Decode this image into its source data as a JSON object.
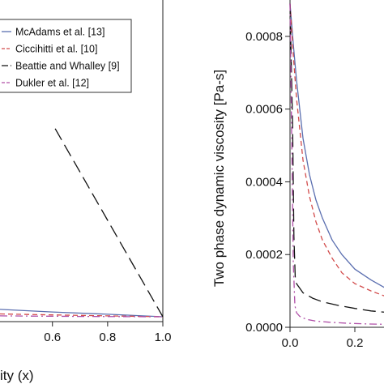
{
  "chart_data": [
    {
      "type": "line",
      "panel": "left",
      "xlabel": "ity (x)",
      "ylabel": "",
      "xlim": [
        0.41,
        1.0
      ],
      "ylim": [
        0,
        1
      ],
      "xticks": [
        0.6,
        0.8,
        1.0
      ],
      "xtick_labels": [
        "0.6",
        "0.8",
        "1.0"
      ],
      "grid": false,
      "legend": {
        "placement": "top-left",
        "entries": [
          {
            "label": "McAdams et al. [13]",
            "color": "#5b6fb0",
            "style": "solid"
          },
          {
            "label": "Ciccihitti et al. [10]",
            "color": "#d24b4b",
            "style": "dashed"
          },
          {
            "label": "Beattie and Whalley [9]",
            "color": "#111111",
            "style": "long-dash"
          },
          {
            "label": "Dukler et al. [12]",
            "color": "#b04fa8",
            "style": "dash-dot"
          }
        ]
      },
      "series": [
        {
          "name": "McAdams et al. [13]",
          "color": "#5b6fb0",
          "style": "solid",
          "x": [
            0.41,
            0.6,
            0.8,
            1.0
          ],
          "y": [
            0.038,
            0.03,
            0.023,
            0.015
          ]
        },
        {
          "name": "Ciccihitti et al. [10]",
          "color": "#d24b4b",
          "style": "dashed",
          "x": [
            0.41,
            0.6,
            0.8,
            1.0
          ],
          "y": [
            0.024,
            0.021,
            0.018,
            0.015
          ]
        },
        {
          "name": "Beattie and Whalley [9]",
          "color": "#111111",
          "style": "long-dash",
          "x": [
            0.61,
            1.0
          ],
          "y": [
            0.6,
            0.015
          ]
        },
        {
          "name": "Dukler et al. [12]",
          "color": "#b04fa8",
          "style": "dash-dot",
          "x": [
            0.41,
            0.7,
            1.0
          ],
          "y": [
            0.018,
            0.016,
            0.015
          ]
        }
      ]
    },
    {
      "type": "line",
      "panel": "right",
      "xlabel": "",
      "ylabel": "Two phase dynamic viscosity [Pa-s]",
      "xlim": [
        0,
        0.31
      ],
      "ylim": [
        0,
        0.0009
      ],
      "xticks": [
        0.0,
        0.2
      ],
      "xtick_labels": [
        "0.0",
        "0.2"
      ],
      "yticks": [
        0.0,
        0.0002,
        0.0004,
        0.0006,
        0.0008
      ],
      "ytick_labels": [
        "0.0000",
        "0.0002",
        "0.0004",
        "0.0006",
        "0.0008"
      ],
      "grid": false,
      "series": [
        {
          "name": "McAdams et al. [13]",
          "color": "#5b6fb0",
          "style": "solid",
          "x": [
            0,
            0.01,
            0.02,
            0.04,
            0.06,
            0.08,
            0.1,
            0.13,
            0.16,
            0.2,
            0.25,
            0.31
          ],
          "y": [
            0.00089,
            0.00078,
            0.00068,
            0.00052,
            0.00042,
            0.00035,
            0.0003,
            0.00024,
            0.0002,
            0.00016,
            0.00013,
            0.0001
          ]
        },
        {
          "name": "Ciccihitti et al. [10]",
          "color": "#d24b4b",
          "style": "dashed",
          "x": [
            0,
            0.01,
            0.02,
            0.04,
            0.06,
            0.08,
            0.1,
            0.13,
            0.16,
            0.2,
            0.25,
            0.31
          ],
          "y": [
            0.00089,
            0.00075,
            0.00063,
            0.00046,
            0.00036,
            0.00029,
            0.00024,
            0.00019,
            0.00015,
            0.00012,
            0.0001,
            8e-05
          ]
        },
        {
          "name": "Beattie and Whalley [9]",
          "color": "#111111",
          "style": "long-dash",
          "x": [
            0,
            0.008,
            0.012,
            0.016,
            0.02,
            0.04,
            0.07,
            0.1,
            0.15,
            0.2,
            0.25,
            0.31
          ],
          "y": [
            0.00089,
            0.00055,
            0.00025,
            0.00014,
            0.00012,
            9.5e-05,
            8e-05,
            7e-05,
            6e-05,
            5.2e-05,
            4.5e-05,
            4e-05
          ]
        },
        {
          "name": "Dukler et al. [12]",
          "color": "#b04fa8",
          "style": "dash-dot",
          "x": [
            0,
            0.01,
            0.015,
            0.02,
            0.03,
            0.05,
            0.08,
            0.12,
            0.18,
            0.25,
            0.31
          ],
          "y": [
            0.00089,
            0.00018,
            6e-05,
            4e-05,
            3e-05,
            2.2e-05,
            1.7e-05,
            1.4e-05,
            1.1e-05,
            9e-06,
            8e-06
          ]
        }
      ]
    }
  ]
}
